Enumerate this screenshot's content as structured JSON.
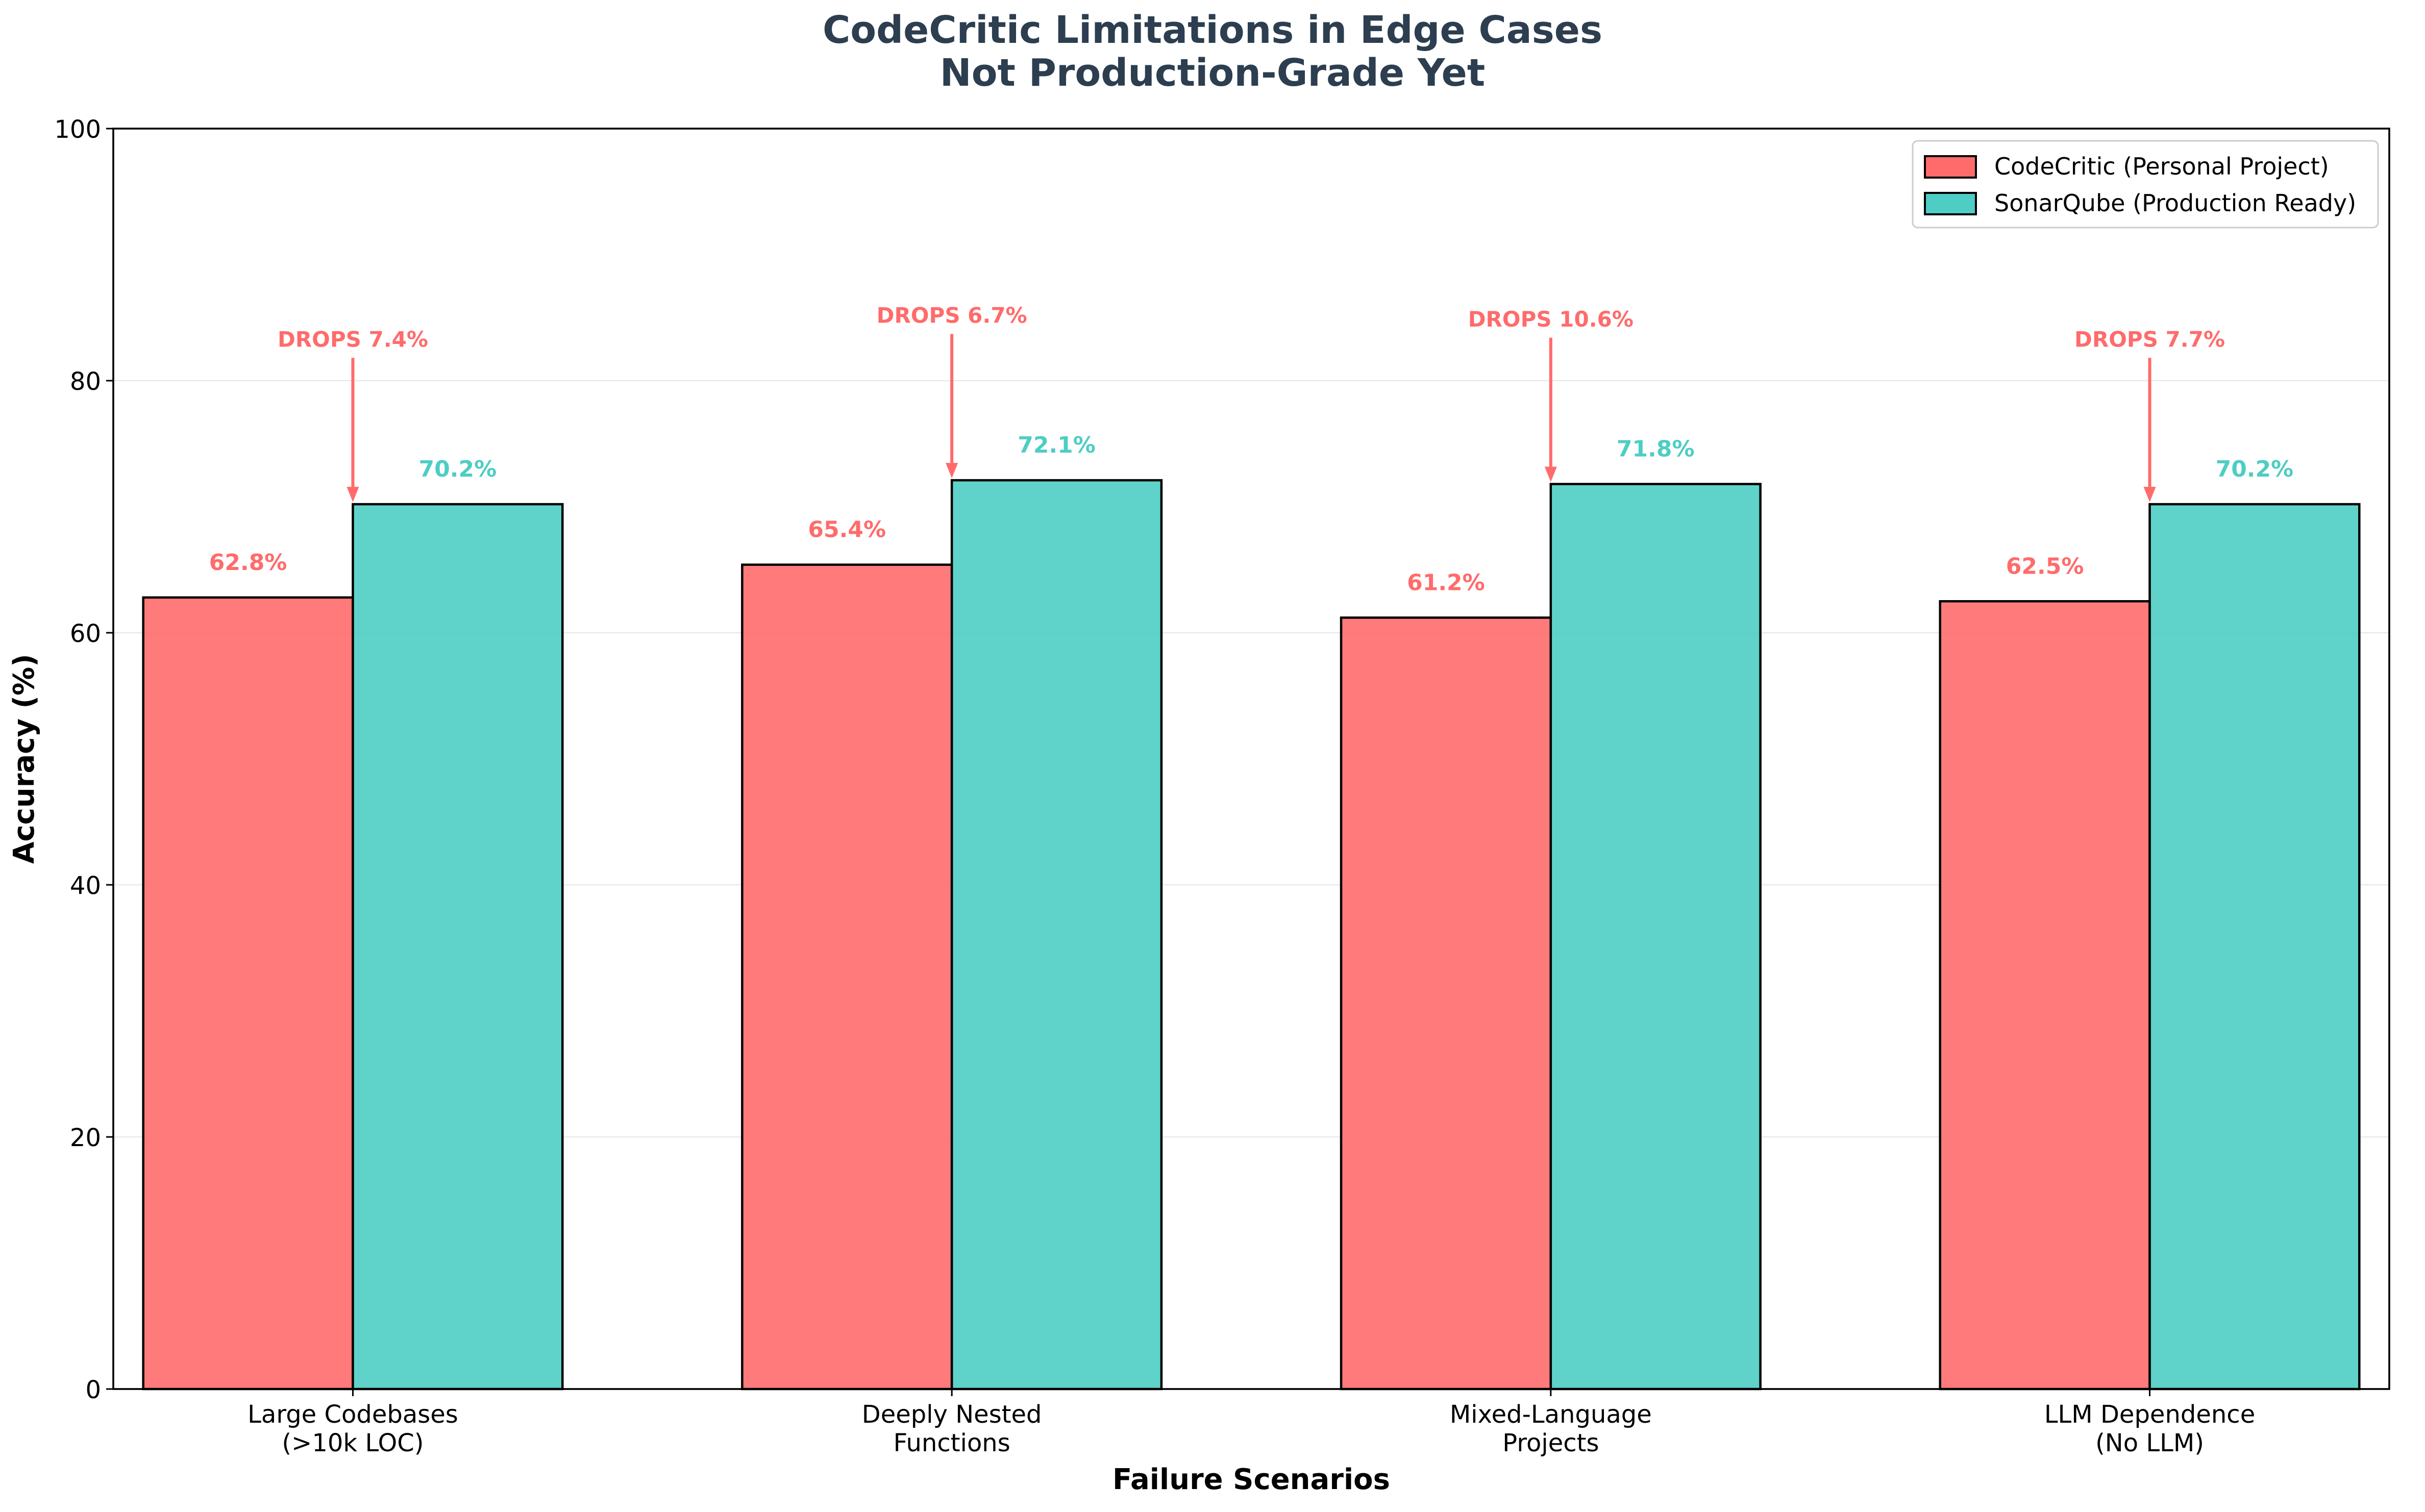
{
  "chart_data": {
    "type": "bar",
    "title": [
      "CodeCritic Limitations in Edge Cases",
      "Not Production-Grade Yet"
    ],
    "xlabel": "Failure Scenarios",
    "ylabel": "Accuracy (%)",
    "ylim": [
      0,
      100
    ],
    "yticks": [
      0,
      20,
      40,
      60,
      80,
      100
    ],
    "grid": "y",
    "legend_position": "top-right",
    "categories": [
      [
        "Large Codebases",
        "(>10k LOC)"
      ],
      [
        "Deeply Nested",
        "Functions"
      ],
      [
        "Mixed-Language",
        "Projects"
      ],
      [
        "LLM Dependence",
        "(No LLM)"
      ]
    ],
    "series": [
      {
        "name": "CodeCritic (Personal Project)",
        "color": "#ff6b6b",
        "values": [
          62.8,
          65.4,
          61.2,
          62.5
        ],
        "value_labels": [
          "62.8%",
          "65.4%",
          "61.2%",
          "62.5%"
        ]
      },
      {
        "name": "SonarQube (Production Ready)",
        "color": "#4ecdc4",
        "values": [
          70.2,
          72.1,
          71.8,
          70.2
        ],
        "value_labels": [
          "70.2%",
          "72.1%",
          "71.8%",
          "70.2%"
        ]
      }
    ],
    "annotations": [
      {
        "text": "DROPS 7.4%",
        "category": 0,
        "color": "#ff6b6b"
      },
      {
        "text": "DROPS 6.7%",
        "category": 1,
        "color": "#ff6b6b"
      },
      {
        "text": "DROPS 10.6%",
        "category": 2,
        "color": "#ff6b6b"
      },
      {
        "text": "DROPS 7.7%",
        "category": 3,
        "color": "#ff6b6b"
      }
    ],
    "title_color": "#2c3e50"
  }
}
